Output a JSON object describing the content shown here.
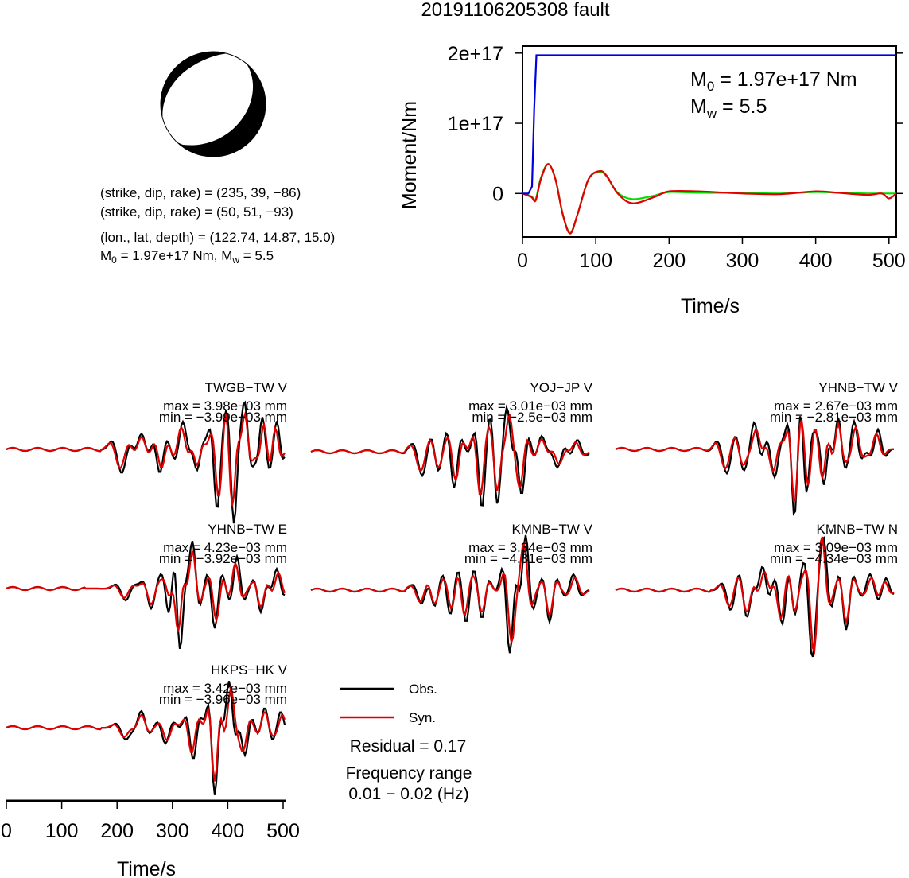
{
  "title": "20191106205308 fault",
  "beachball": {
    "nodal_plane_1": "(strike, dip, rake) = (235, 39, −86)",
    "nodal_plane_2": "(strike, dip, rake) = (50, 51, −93)",
    "location": "(lon., lat, depth) = (122.74, 14.87, 15.0)",
    "m0_prefix": "M",
    "m0_sub": "0",
    "m0_mid": " = 1.97e+17 Nm, M",
    "mw_sub": "w",
    "mw_suffix": " = 5.5"
  },
  "stf": {
    "ylabel": "Moment/Nm",
    "xlabel": "Time/s",
    "annot_m0_prefix": "M",
    "annot_m0_sub": "0",
    "annot_m0_suffix": " = 1.97e+17 Nm",
    "annot_mw_prefix": "M",
    "annot_mw_sub": "w",
    "annot_mw_suffix": " = 5.5"
  },
  "legend": {
    "obs_label": "Obs.",
    "syn_label": "Syn.",
    "obs_color": "#000000",
    "syn_color": "#e00000"
  },
  "residual": "Residual = 0.17",
  "freq_title": "Frequency range",
  "freq_value": "0.01 − 0.02 (Hz)",
  "waveform_axis": {
    "xlabel": "Time/s",
    "ticks": [
      "0",
      "100",
      "200",
      "300",
      "400",
      "500"
    ]
  },
  "chart_data": [
    {
      "type": "line",
      "title": "",
      "xlabel": "Time/s",
      "ylabel": "Moment/Nm",
      "xlim": [
        0,
        510
      ],
      "ylim": [
        -6.2e+16,
        2.1e+17
      ],
      "x_ticks": [
        0,
        100,
        200,
        300,
        400,
        500
      ],
      "y_ticks": [
        0,
        1e+17,
        2e+17
      ],
      "y_tick_labels": [
        "0",
        "1e+17",
        "2e+17"
      ],
      "series": [
        {
          "color": "#0000dd",
          "x": [
            0,
            8,
            13,
            16,
            19,
            20,
            510
          ],
          "y": [
            0,
            0,
            1e+16,
            1.2e+17,
            1.97e+17,
            1.97e+17,
            1.97e+17
          ]
        },
        {
          "color": "#e00000",
          "x": [
            0,
            12,
            18,
            25,
            35,
            45,
            55,
            65,
            75,
            90,
            105,
            115,
            130,
            150,
            180,
            200,
            240,
            300,
            350,
            400,
            430,
            470,
            490,
            500,
            510
          ],
          "y": [
            0,
            -5000000000000000.0,
            -1e+16,
            2e+16,
            4.2e+16,
            2e+16,
            -3e+16,
            -5.7e+16,
            -3e+16,
            2e+16,
            3.2e+16,
            2.5e+16,
            0,
            -1.4e+16,
            -5000000000000000.0,
            3000000000000000.0,
            3000000000000000.0,
            0,
            -1000000000000000.0,
            3000000000000000.0,
            1000000000000000.0,
            -2000000000000000.0,
            0,
            -7000000000000000.0,
            0
          ]
        },
        {
          "color": "#00dd00",
          "x": [
            0,
            12,
            18,
            25,
            35,
            45,
            55,
            65,
            75,
            90,
            105,
            115,
            130,
            150,
            180,
            200,
            240,
            300,
            350,
            400,
            430,
            470,
            490,
            500,
            510
          ],
          "y": [
            0,
            -4000000000000000.0,
            -8000000000000000.0,
            2.2e+16,
            4.2e+16,
            2e+16,
            -3e+16,
            -5.6e+16,
            -3e+16,
            2e+16,
            3.1e+16,
            2.4e+16,
            1000000000000000.0,
            -8000000000000000.0,
            -3000000000000000.0,
            2000000000000000.0,
            1000000000000000.0,
            1000000000000000.0,
            0,
            2000000000000000.0,
            1000000000000000.0,
            0,
            0,
            0,
            0
          ]
        }
      ]
    },
    {
      "type": "line",
      "station": "TWGB−TW V",
      "max": "max = 3.98e−03 mm",
      "min": "min = −3.99e−03 mm",
      "series": [
        {
          "name": "Obs.",
          "color": "#000000"
        },
        {
          "name": "Syn.",
          "color": "#e00000"
        }
      ]
    },
    {
      "type": "line",
      "station": "YOJ−JP V",
      "max": "max = 3.01e−03 mm",
      "min": "min = −2.5e−03 mm",
      "series": [
        {
          "name": "Obs.",
          "color": "#000000"
        },
        {
          "name": "Syn.",
          "color": "#e00000"
        }
      ]
    },
    {
      "type": "line",
      "station": "YHNB−TW V",
      "max": "max = 2.67e−03 mm",
      "min": "min = −2.81e−03 mm",
      "series": [
        {
          "name": "Obs.",
          "color": "#000000"
        },
        {
          "name": "Syn.",
          "color": "#e00000"
        }
      ]
    },
    {
      "type": "line",
      "station": "YHNB−TW E",
      "max": "max = 4.23e−03 mm",
      "min": "min = −3.92e−03 mm",
      "series": [
        {
          "name": "Obs.",
          "color": "#000000"
        },
        {
          "name": "Syn.",
          "color": "#e00000"
        }
      ]
    },
    {
      "type": "line",
      "station": "KMNB−TW V",
      "max": "max = 3.34e−03 mm",
      "min": "min = −4.31e−03 mm",
      "series": [
        {
          "name": "Obs.",
          "color": "#000000"
        },
        {
          "name": "Syn.",
          "color": "#e00000"
        }
      ]
    },
    {
      "type": "line",
      "station": "KMNB−TW N",
      "max": "max = 3.09e−03 mm",
      "min": "min = −4.34e−03 mm",
      "series": [
        {
          "name": "Obs.",
          "color": "#000000"
        },
        {
          "name": "Syn.",
          "color": "#e00000"
        }
      ]
    },
    {
      "type": "line",
      "station": "HKPS−HK V",
      "max": "max = 3.42e−03 mm",
      "min": "min = −3.96e−03 mm",
      "series": [
        {
          "name": "Obs.",
          "color": "#000000"
        },
        {
          "name": "Syn.",
          "color": "#e00000"
        }
      ]
    }
  ]
}
